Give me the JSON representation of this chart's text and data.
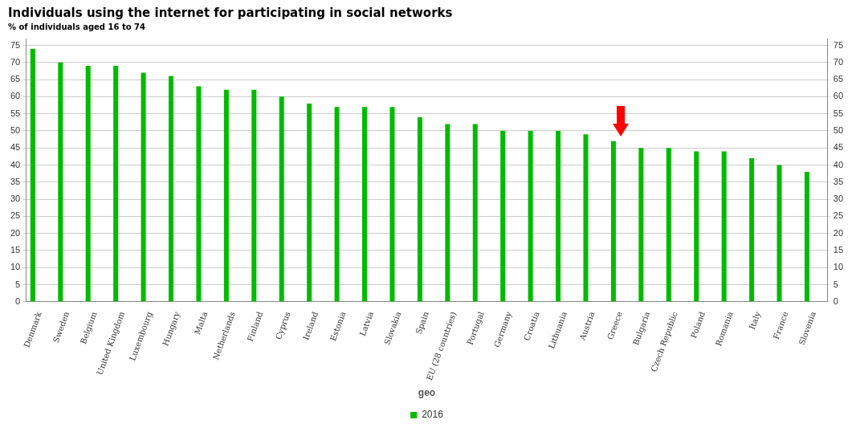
{
  "chart_data": {
    "type": "bar",
    "title": "Individuals using the internet for participating in social networks",
    "subtitle": "% of individuals aged 16 to 74",
    "xlabel": "geo",
    "categories": [
      "Denmark",
      "Sweden",
      "Belgium",
      "United Kingdom",
      "Luxembourg",
      "Hungary",
      "Malta",
      "Netherlands",
      "Finland",
      "Cyprus",
      "Ireland",
      "Estonia",
      "Latvia",
      "Slovakia",
      "Spain",
      "EU (28 countries)",
      "Portugal",
      "Germany",
      "Croatia",
      "Lithuania",
      "Austria",
      "Greece",
      "Bulgaria",
      "Czech Republic",
      "Poland",
      "Romania",
      "Italy",
      "France",
      "Slovenia"
    ],
    "series": [
      {
        "name": "2016",
        "color": "#00bb00",
        "values": [
          74,
          70,
          69,
          69,
          67,
          66,
          63,
          62,
          62,
          60,
          58,
          57,
          57,
          57,
          54,
          52,
          52,
          50,
          50,
          50,
          49,
          47,
          45,
          45,
          44,
          44,
          42,
          40,
          38
        ]
      }
    ],
    "ylim": [
      0,
      77
    ],
    "yticks": [
      0,
      5,
      10,
      15,
      20,
      25,
      30,
      35,
      40,
      45,
      50,
      55,
      60,
      65,
      70,
      75
    ],
    "y2lim": [
      0,
      77
    ],
    "y2ticks": [
      0,
      5,
      10,
      15,
      20,
      25,
      30,
      35,
      40,
      45,
      50,
      55,
      60,
      65,
      70,
      75
    ],
    "grid": "y",
    "legend": "bottom"
  }
}
